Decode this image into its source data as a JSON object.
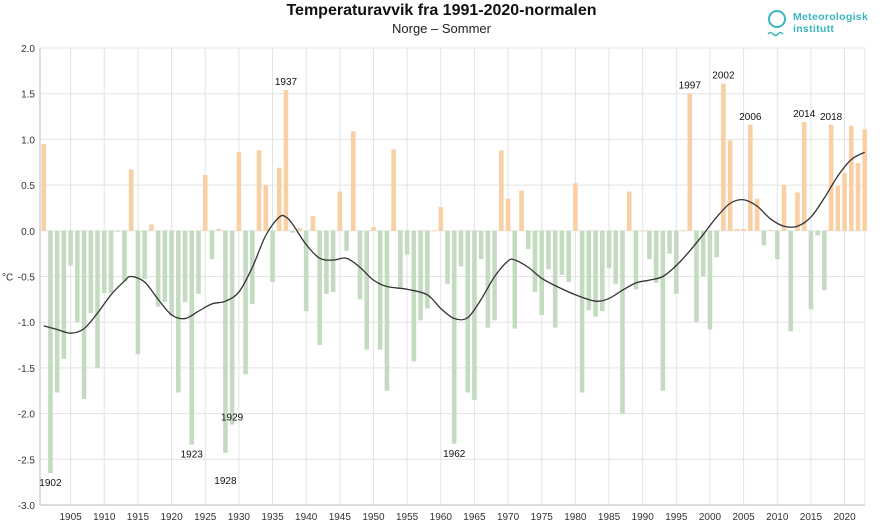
{
  "header": {
    "title": "Temperaturavvik fra 1991-2020-normalen",
    "subtitle": "Norge – Sommer"
  },
  "logo": {
    "line1": "Meteorologisk",
    "line2": "institutt",
    "color": "#3bb5c0"
  },
  "chart_data": {
    "type": "bar",
    "title": "Temperaturavvik fra 1991-2020-normalen",
    "subtitle": "Norge – Sommer",
    "ylabel": "°C",
    "xlabel": "",
    "ylim": [
      -3.0,
      2.0
    ],
    "yticks": [
      "2.0",
      "1.5",
      "1.0",
      "0.5",
      "0.0",
      "-0.5",
      "-1.0",
      "-1.5",
      "-2.0",
      "-2.5",
      "-3.0"
    ],
    "xticks": [
      "1905",
      "1910",
      "1915",
      "1920",
      "1925",
      "1930",
      "1935",
      "1940",
      "1945",
      "1950",
      "1955",
      "1960",
      "1965",
      "1970",
      "1975",
      "1980",
      "1985",
      "1990",
      "1995",
      "2000",
      "2005",
      "2010",
      "2015",
      "2020"
    ],
    "grid": true,
    "colors": {
      "positive": "#f9cfa4",
      "negative": "#c3dcc0",
      "curve": "#333333"
    },
    "first_year": 1901,
    "values": [
      0.95,
      -2.65,
      -1.77,
      -1.4,
      -0.38,
      -1.0,
      -1.84,
      -0.9,
      -1.5,
      -0.68,
      -0.68,
      -0.01,
      -0.55,
      0.67,
      -1.35,
      -0.53,
      0.07,
      -0.83,
      -0.78,
      -0.93,
      -1.77,
      -0.78,
      -2.34,
      -0.69,
      0.61,
      -0.31,
      0.02,
      -2.43,
      -2.12,
      0.86,
      -1.57,
      -0.8,
      0.88,
      0.5,
      -0.56,
      0.69,
      1.54,
      -0.02,
      0.03,
      -0.88,
      0.16,
      -1.25,
      -0.69,
      -0.67,
      0.43,
      -0.22,
      1.09,
      -0.75,
      -1.3,
      0.04,
      -1.3,
      -1.75,
      0.89,
      -0.62,
      -0.26,
      -1.43,
      -0.98,
      -0.85,
      0.0,
      0.26,
      -0.58,
      -2.33,
      -0.39,
      -1.77,
      -1.85,
      -0.31,
      -1.06,
      -0.98,
      0.88,
      0.35,
      -1.07,
      0.44,
      -0.2,
      -0.67,
      -0.92,
      -0.42,
      -1.06,
      -0.48,
      -0.56,
      0.52,
      -1.77,
      -0.87,
      -0.94,
      -0.88,
      -0.41,
      -0.58,
      -2.0,
      0.43,
      -0.64,
      0.0,
      -0.31,
      -0.57,
      -1.75,
      -0.25,
      -0.69,
      0.0,
      1.5,
      -1.0,
      -0.5,
      -1.08,
      -0.29,
      1.61,
      0.99,
      0.02,
      0.02,
      1.16,
      0.35,
      -0.16,
      0.01,
      -0.31,
      0.5,
      -1.1,
      0.42,
      1.19,
      -0.86,
      -0.05,
      -0.65,
      1.16,
      0.49,
      0.63,
      1.15,
      0.74,
      1.11
    ],
    "smooth": {
      "years": [
        1901,
        1903,
        1905,
        1907,
        1909,
        1911,
        1913,
        1914,
        1916,
        1918,
        1920,
        1922,
        1924,
        1926,
        1928,
        1930,
        1932,
        1934,
        1936,
        1937,
        1938,
        1940,
        1942,
        1944,
        1946,
        1948,
        1950,
        1952,
        1955,
        1958,
        1960,
        1962,
        1964,
        1966,
        1968,
        1970,
        1971,
        1973,
        1975,
        1977,
        1980,
        1983,
        1985,
        1987,
        1989,
        1991,
        1993,
        1995,
        1997,
        1999,
        2001,
        2003,
        2005,
        2007,
        2009,
        2011,
        2013,
        2015,
        2017,
        2019,
        2021,
        2023
      ],
      "values": [
        -1.04,
        -1.08,
        -1.12,
        -1.07,
        -0.9,
        -0.7,
        -0.55,
        -0.5,
        -0.56,
        -0.75,
        -0.92,
        -0.96,
        -0.88,
        -0.8,
        -0.77,
        -0.67,
        -0.4,
        -0.05,
        0.15,
        0.15,
        0.07,
        -0.15,
        -0.3,
        -0.32,
        -0.3,
        -0.4,
        -0.54,
        -0.61,
        -0.64,
        -0.7,
        -0.85,
        -0.96,
        -0.95,
        -0.75,
        -0.5,
        -0.33,
        -0.32,
        -0.4,
        -0.52,
        -0.6,
        -0.7,
        -0.77,
        -0.74,
        -0.65,
        -0.57,
        -0.54,
        -0.5,
        -0.38,
        -0.22,
        -0.04,
        0.15,
        0.3,
        0.34,
        0.27,
        0.13,
        0.05,
        0.05,
        0.15,
        0.36,
        0.6,
        0.78,
        0.86
      ]
    },
    "annotations": [
      "1902",
      "1923",
      "1928",
      "1929",
      "1937",
      "1962",
      "1997",
      "2002",
      "2006",
      "2014",
      "2018"
    ]
  }
}
